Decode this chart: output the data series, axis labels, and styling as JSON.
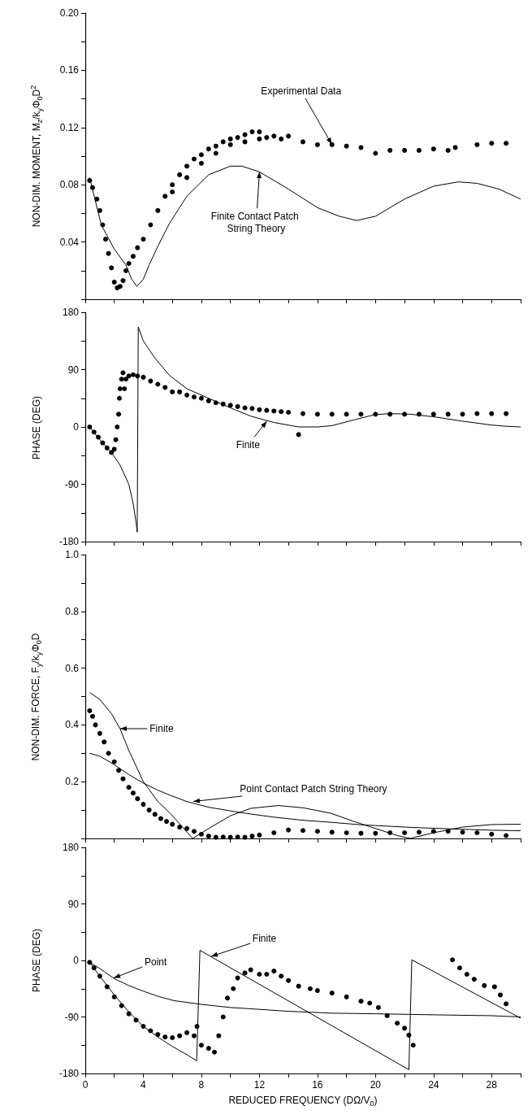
{
  "chart_data": [
    {
      "type": "line",
      "ylabel": "NON-DIM. MOMENT, M$_{z}$/k$_{y}$Φ$_{0}$D$^{2}$",
      "xlim": [
        0,
        30
      ],
      "ylim": [
        0,
        0.2
      ],
      "tick_labels": "y",
      "xticks": [
        0,
        {
          "value": 2,
          "label": null
        },
        4,
        {
          "value": 6,
          "label": null
        },
        8,
        {
          "value": 10,
          "label": null
        },
        12,
        {
          "value": 14,
          "label": null
        },
        16,
        {
          "value": 18,
          "label": null
        },
        20,
        {
          "value": 22,
          "label": null
        },
        24,
        {
          "value": 26,
          "label": null
        },
        28,
        {
          "value": 30,
          "label": null
        }
      ],
      "yticks": [
        {
          "value": 0,
          "label": null
        },
        {
          "value": 0.02,
          "label": null
        },
        {
          "value": 0.04,
          "label": "0.04"
        },
        {
          "value": 0.06,
          "label": null
        },
        {
          "value": 0.08,
          "label": "0.08"
        },
        {
          "value": 0.1,
          "label": null
        },
        {
          "value": 0.12,
          "label": "0.12"
        },
        {
          "value": 0.14,
          "label": null
        },
        {
          "value": 0.16,
          "label": "0.16"
        },
        {
          "value": 0.18,
          "label": null
        },
        {
          "value": 0.2,
          "label": "0.20"
        }
      ],
      "series": [
        {
          "type": "scatter",
          "marker": "circle",
          "color": "#000000",
          "x": [
            0.3,
            0.5,
            0.8,
            1.0,
            1.2,
            1.4,
            1.6,
            1.8,
            2.0,
            2.2,
            2.4,
            2.6,
            2.8,
            3.0,
            3.3,
            3.6,
            4.0,
            4.5,
            5,
            5.5,
            6,
            6.5,
            7,
            7.5,
            8,
            8.5,
            9,
            9.5,
            10,
            10.5,
            11,
            11.5,
            12,
            12.5,
            13,
            13.5,
            14,
            15,
            16,
            17,
            18,
            19,
            20,
            21,
            22,
            23,
            24,
            25,
            25.5,
            27,
            28,
            29,
            6,
            7,
            8,
            9,
            10,
            11,
            12
          ],
          "values": [
            0.083,
            0.078,
            0.07,
            0.062,
            0.052,
            0.042,
            0.032,
            0.022,
            0.012,
            0.008,
            0.009,
            0.013,
            0.02,
            0.025,
            0.03,
            0.036,
            0.042,
            0.052,
            0.062,
            0.072,
            0.08,
            0.087,
            0.093,
            0.098,
            0.101,
            0.105,
            0.107,
            0.11,
            0.112,
            0.113,
            0.115,
            0.117,
            0.117,
            0.113,
            0.114,
            0.112,
            0.114,
            0.11,
            0.108,
            0.108,
            0.107,
            0.106,
            0.102,
            0.104,
            0.104,
            0.104,
            0.105,
            0.104,
            0.106,
            0.108,
            0.109,
            0.109,
            0.075,
            0.085,
            0.095,
            0.102,
            0.108,
            0.11,
            0.112
          ]
        },
        {
          "color": "#000000",
          "x": [
            0.3,
            1.1,
            2.0,
            2.8,
            3.2,
            3.55,
            4.0,
            4.4,
            5.0,
            5.8,
            7,
            8.5,
            10,
            10.8,
            12,
            14,
            16,
            17.5,
            18.7,
            20,
            22,
            24,
            25.7,
            27,
            28.5,
            30
          ],
          "values": [
            0.085,
            0.052,
            0.035,
            0.024,
            0.014,
            0.009,
            0.014,
            0.024,
            0.037,
            0.053,
            0.072,
            0.087,
            0.093,
            0.093,
            0.089,
            0.077,
            0.064,
            0.058,
            0.055,
            0.058,
            0.07,
            0.079,
            0.082,
            0.081,
            0.077,
            0.07
          ]
        }
      ],
      "annotations": [
        {
          "text": "Experimental Data",
          "x": 17,
          "y": 0.108
        },
        {
          "text": "Finite Contact Patch String Theory",
          "x": 12,
          "y": 0.089
        }
      ]
    },
    {
      "type": "line",
      "ylabel": "PHASE (DEG)",
      "xlim": [
        0,
        30
      ],
      "ylim": [
        -180,
        180
      ],
      "tick_labels": "y",
      "xticks": [
        0,
        {
          "value": 2,
          "label": null
        },
        4,
        {
          "value": 6,
          "label": null
        },
        8,
        {
          "value": 10,
          "label": null
        },
        12,
        {
          "value": 14,
          "label": null
        },
        16,
        {
          "value": 18,
          "label": null
        },
        20,
        {
          "value": 22,
          "label": null
        },
        24,
        {
          "value": 26,
          "label": null
        },
        28,
        {
          "value": 30,
          "label": null
        }
      ],
      "yticks": [
        -180,
        {
          "value": -135,
          "label": null
        },
        -90,
        {
          "value": -45,
          "label": null
        },
        0,
        {
          "value": 45,
          "label": null
        },
        90,
        {
          "value": 135,
          "label": null
        },
        180
      ],
      "series": [
        {
          "type": "scatter",
          "marker": "circle",
          "color": "#000000",
          "x": [
            0.3,
            0.6,
            0.9,
            1.2,
            1.5,
            1.8,
            2.0,
            2.1,
            2.2,
            2.3,
            2.35,
            2.4,
            2.5,
            2.6,
            2.7,
            2.8,
            3.0,
            3.3,
            3.6,
            4.0,
            4.5,
            5,
            5.5,
            6,
            6.5,
            7,
            7.5,
            8,
            8.5,
            9,
            9.5,
            10,
            10.5,
            11,
            11.5,
            12,
            12.5,
            13,
            13.5,
            14,
            14.7,
            15,
            16,
            17,
            18,
            19,
            20,
            21,
            22,
            23,
            24,
            25,
            26,
            27,
            28,
            29
          ],
          "values": [
            0,
            -8,
            -16,
            -25,
            -33,
            -40,
            -35,
            -20,
            0,
            20,
            45,
            60,
            75,
            85,
            60,
            75,
            80,
            82,
            80,
            78,
            72,
            67,
            62,
            55,
            55,
            50,
            47,
            45,
            41,
            38,
            36,
            34,
            32,
            30,
            29,
            27,
            26,
            25,
            24,
            23,
            -12,
            21,
            20,
            20,
            20,
            20,
            20,
            20,
            20,
            20,
            20,
            20,
            20,
            21,
            21,
            21
          ]
        },
        {
          "color": "#000000",
          "x": [
            0.3,
            1.0,
            1.8,
            2.4,
            3.0,
            3.3,
            3.5,
            3.58,
            3.65,
            4.0,
            4.8,
            5.8,
            7,
            8.6,
            10,
            11.4,
            13,
            14.7,
            16,
            17,
            18.5,
            19.9,
            21,
            22.4,
            24,
            26,
            28,
            29,
            30
          ],
          "values": [
            0,
            -20,
            -40,
            -60,
            -90,
            -120,
            -150,
            -165,
            157,
            135,
            108,
            81,
            60,
            44,
            30,
            17,
            7,
            0,
            0,
            2,
            11,
            19,
            21,
            20,
            16,
            9,
            3,
            1,
            0
          ]
        }
      ],
      "annotations": [
        {
          "text": "Finite",
          "x": 12.5,
          "y": 9
        }
      ]
    },
    {
      "type": "line",
      "ylabel": "NON-DIM. FORCE, F$_{y}$/k$_{y}$Φ$_{0}$D",
      "xlim": [
        0,
        30
      ],
      "ylim": [
        0,
        1
      ],
      "tick_labels": "y",
      "xticks": [
        0,
        {
          "value": 2,
          "label": null
        },
        4,
        {
          "value": 6,
          "label": null
        },
        8,
        {
          "value": 10,
          "label": null
        },
        12,
        {
          "value": 14,
          "label": null
        },
        16,
        {
          "value": 18,
          "label": null
        },
        20,
        {
          "value": 22,
          "label": null
        },
        24,
        {
          "value": 26,
          "label": null
        },
        28,
        {
          "value": 30,
          "label": null
        }
      ],
      "yticks": [
        {
          "value": 0,
          "label": null
        },
        {
          "value": 0.1,
          "label": null
        },
        0.2,
        {
          "value": 0.3,
          "label": null
        },
        0.4,
        {
          "value": 0.5,
          "label": null
        },
        0.6,
        {
          "value": 0.7,
          "label": null
        },
        0.8,
        {
          "value": 0.9,
          "label": null
        },
        {
          "value": 1,
          "label": "1.0"
        }
      ],
      "series": [
        {
          "type": "scatter",
          "marker": "circle",
          "color": "#000000",
          "x": [
            0.3,
            0.5,
            0.7,
            1.0,
            1.3,
            1.6,
            2.0,
            2.3,
            2.6,
            3.0,
            3.3,
            3.6,
            4.0,
            4.4,
            4.8,
            5.2,
            5.6,
            6.0,
            6.5,
            7.0,
            7.5,
            8,
            8.5,
            9,
            9.5,
            10,
            10.5,
            11,
            11.5,
            12,
            13,
            14,
            15,
            16,
            17,
            18,
            19,
            20,
            21,
            22,
            23,
            24,
            25,
            26,
            27,
            28,
            29
          ],
          "values": [
            0.45,
            0.43,
            0.4,
            0.37,
            0.34,
            0.3,
            0.27,
            0.24,
            0.21,
            0.18,
            0.16,
            0.14,
            0.12,
            0.1,
            0.085,
            0.07,
            0.06,
            0.05,
            0.04,
            0.035,
            0.025,
            0.015,
            0.008,
            0.004,
            0.005,
            0.004,
            0.005,
            0.004,
            0.008,
            0.012,
            0.02,
            0.03,
            0.028,
            0.025,
            0.022,
            0.02,
            0.018,
            0.018,
            0.02,
            0.02,
            0.022,
            0.025,
            0.025,
            0.022,
            0.02,
            0.015,
            0.01
          ]
        },
        {
          "color": "#000000",
          "x": [
            0.3,
            1,
            1.8,
            2.4,
            3,
            4,
            5,
            5.9,
            6.7,
            7.4,
            8.5,
            10,
            11.4,
            13.3,
            15,
            16.9,
            18.5,
            20,
            21.5,
            22.4,
            24,
            26,
            28,
            30
          ],
          "values": [
            0.514,
            0.49,
            0.44,
            0.386,
            0.31,
            0.2,
            0.13,
            0.086,
            0.04,
            0,
            0.035,
            0.08,
            0.106,
            0.116,
            0.108,
            0.089,
            0.06,
            0.035,
            0.01,
            0,
            0.02,
            0.04,
            0.049,
            0.05
          ]
        },
        {
          "color": "#000000",
          "x": [
            0.3,
            1,
            2,
            3,
            4,
            5,
            5.9,
            7,
            8.5,
            10,
            11.4,
            13,
            15,
            16.9,
            19,
            22.4,
            25,
            28,
            30
          ],
          "values": [
            0.3,
            0.29,
            0.26,
            0.225,
            0.195,
            0.17,
            0.151,
            0.13,
            0.11,
            0.097,
            0.086,
            0.075,
            0.064,
            0.057,
            0.048,
            0.039,
            0.034,
            0.029,
            0.027
          ]
        }
      ],
      "annotations": [
        {
          "text": "Finite",
          "x": 2.4,
          "y": 0.386
        },
        {
          "text": "Point Contact Patch String Theory",
          "x": 7.44,
          "y": 0.13
        }
      ]
    },
    {
      "type": "line",
      "ylabel": "PHASE (DEG)",
      "xlabel": "REDUCED FREQUENCY (DΩ/V$_{0}$)",
      "xlim": [
        0,
        30
      ],
      "ylim": [
        -180,
        180
      ],
      "xticks": [
        0,
        {
          "value": 2,
          "label": null
        },
        4,
        {
          "value": 6,
          "label": null
        },
        8,
        {
          "value": 10,
          "label": null
        },
        12,
        {
          "value": 14,
          "label": null
        },
        16,
        {
          "value": 18,
          "label": null
        },
        20,
        {
          "value": 22,
          "label": null
        },
        24,
        {
          "value": 26,
          "label": null
        },
        28,
        {
          "value": 30,
          "label": null
        }
      ],
      "yticks": [
        -180,
        {
          "value": -135,
          "label": null
        },
        -90,
        {
          "value": -45,
          "label": null
        },
        0,
        {
          "value": 45,
          "label": null
        },
        90,
        {
          "value": 135,
          "label": null
        },
        180
      ],
      "series": [
        {
          "type": "scatter",
          "marker": "circle",
          "color": "#000000",
          "x": [
            0.3,
            0.6,
            1,
            1.5,
            2,
            2.5,
            3,
            3.5,
            4,
            4.5,
            5,
            5.5,
            6,
            6.5,
            7,
            7.5,
            7.7,
            8,
            8.5,
            8.9,
            9.2,
            9.5,
            9.8,
            10.2,
            10.5,
            11,
            11.4,
            12,
            12.5,
            13,
            13.5,
            14,
            14.7,
            15.5,
            16,
            17,
            18,
            19,
            19.6,
            20.2,
            20.8,
            21.5,
            22,
            22.3,
            22.6,
            25.3,
            25.8,
            26.3,
            26.8,
            27.5,
            28.2,
            28.6,
            29
          ],
          "values": [
            -3,
            -12,
            -25,
            -42,
            -58,
            -72,
            -85,
            -95,
            -105,
            -112,
            -118,
            -122,
            -123,
            -120,
            -115,
            -120,
            -105,
            -135,
            -140,
            -146,
            -120,
            -90,
            -60,
            -45,
            -28,
            -20,
            -15,
            -22,
            -22,
            -17,
            -25,
            -32,
            -41,
            -45,
            -48,
            -52,
            -58,
            -65,
            -68,
            -75,
            -88,
            -100,
            -108,
            -119,
            -135,
            1,
            -12,
            -22,
            -30,
            -40,
            -42,
            -55,
            -69
          ]
        },
        {
          "color": "#000000",
          "x": [
            0.3,
            1,
            2,
            3,
            4,
            5,
            6,
            7,
            7.68,
            7.9,
            22.3,
            22.5,
            30
          ],
          "values": [
            -3,
            -25,
            -55,
            -82,
            -105,
            -122,
            -137,
            -150,
            -160,
            16,
            -174,
            1,
            -92
          ]
        },
        {
          "color": "#000000",
          "x": [
            0.3,
            1,
            2,
            3,
            4,
            5,
            6.1,
            8,
            10,
            11.4,
            14,
            17,
            20,
            22.5,
            25,
            28,
            30
          ],
          "values": [
            -3,
            -13,
            -29,
            -40,
            -49,
            -57,
            -64,
            -70,
            -75,
            -77,
            -81,
            -84,
            -85,
            -86,
            -87,
            -88,
            -90
          ]
        }
      ],
      "annotations": [
        {
          "text": "Point",
          "x": 1.94,
          "y": -28
        },
        {
          "text": "Finite",
          "x": 8.65,
          "y": 6
        }
      ]
    }
  ]
}
